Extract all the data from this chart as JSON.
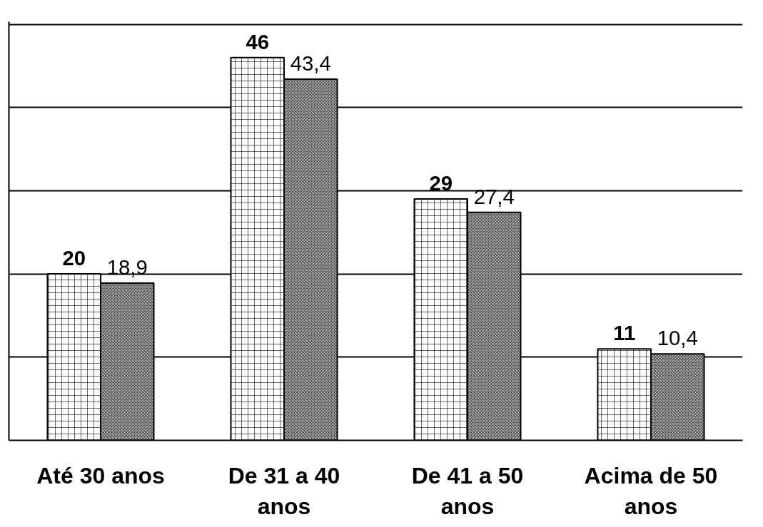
{
  "chart_data": {
    "type": "bar",
    "categories": [
      "Até 30 anos",
      "De 31 a 40 anos",
      "De 41 a 50 anos",
      "Acima de 50 anos"
    ],
    "series": [
      {
        "color": "#ffffff",
        "values": [
          20,
          46,
          29,
          11
        ],
        "value_labels": [
          "20",
          "46",
          "29",
          "11"
        ]
      },
      {
        "color": "#555555",
        "values": [
          18.9,
          43.4,
          27.4,
          10.4
        ],
        "value_labels": [
          "18,9",
          "43,4",
          "27,4",
          "10,4"
        ]
      }
    ],
    "ylim": [
      0,
      50
    ],
    "yticks": [
      {
        "value": 0,
        "label": null
      },
      {
        "value": 10,
        "label": null
      },
      {
        "value": 20,
        "label": null
      },
      {
        "value": 30,
        "label": null
      },
      {
        "value": 40,
        "label": null
      },
      {
        "value": 50,
        "label": null
      }
    ],
    "grid": "y",
    "tick_labels": "x"
  }
}
